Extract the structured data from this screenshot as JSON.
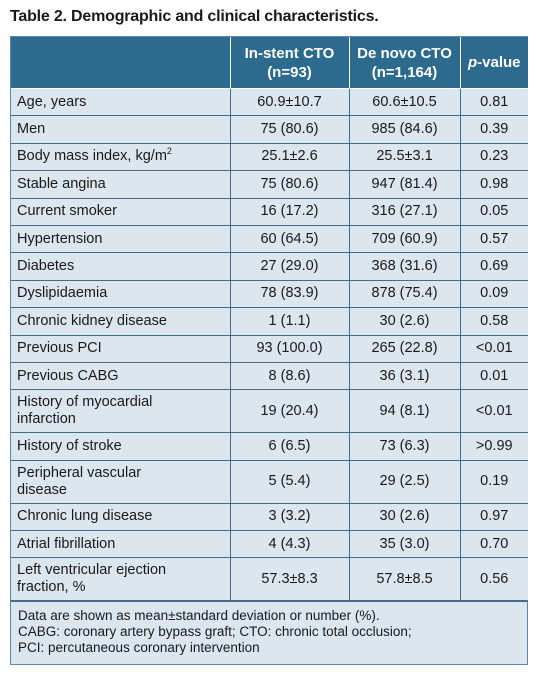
{
  "title": "Table 2. Demographic and clinical characteristics.",
  "header": {
    "col1": "",
    "col2_line1": "In-stent CTO",
    "col2_line2": "(n=93)",
    "col3_line1": "De novo CTO",
    "col3_line2": "(n=1,164)",
    "col4_italic": "p",
    "col4_rest": "-value"
  },
  "rows": [
    {
      "label": "Age, years",
      "a": "60.9±10.7",
      "b": "60.6±10.5",
      "p": "0.81"
    },
    {
      "label": "Men",
      "a": "75 (80.6)",
      "b": "985 (84.6)",
      "p": "0.39"
    },
    {
      "label": "Body mass index, kg/m",
      "label_sup": "2",
      "a": "25.1±2.6",
      "b": "25.5±3.1",
      "p": "0.23"
    },
    {
      "label": "Stable angina",
      "a": "75 (80.6)",
      "b": "947 (81.4)",
      "p": "0.98"
    },
    {
      "label": "Current smoker",
      "a": "16 (17.2)",
      "b": "316 (27.1)",
      "p": "0.05"
    },
    {
      "label": "Hypertension",
      "a": "60 (64.5)",
      "b": "709 (60.9)",
      "p": "0.57"
    },
    {
      "label": "Diabetes",
      "a": "27 (29.0)",
      "b": "368 (31.6)",
      "p": "0.69"
    },
    {
      "label": "Dyslipidaemia",
      "a": "78 (83.9)",
      "b": "878 (75.4)",
      "p": "0.09"
    },
    {
      "label": "Chronic kidney disease",
      "a": "1 (1.1)",
      "b": "30 (2.6)",
      "p": "0.58"
    },
    {
      "label": "Previous PCI",
      "a": "93 (100.0)",
      "b": "265 (22.8)",
      "p": "<0.01"
    },
    {
      "label": "Previous CABG",
      "a": "8 (8.6)",
      "b": "36 (3.1)",
      "p": "0.01"
    },
    {
      "label_line1": "History of myocardial",
      "label_line2": "infarction",
      "a": "19 (20.4)",
      "b": "94 (8.1)",
      "p": "<0.01"
    },
    {
      "label": "History of stroke",
      "a": "6 (6.5)",
      "b": "73 (6.3)",
      "p": ">0.99"
    },
    {
      "label_line1": "Peripheral vascular",
      "label_line2": "disease",
      "a": "5 (5.4)",
      "b": "29 (2.5)",
      "p": "0.19"
    },
    {
      "label": "Chronic lung disease",
      "a": "3 (3.2)",
      "b": "30 (2.6)",
      "p": "0.97"
    },
    {
      "label": "Atrial fibrillation",
      "a": "4 (4.3)",
      "b": "35 (3.0)",
      "p": "0.70"
    },
    {
      "label_line1": "Left ventricular ejection",
      "label_line2": "fraction, %",
      "a": "57.3±8.3",
      "b": "57.8±8.5",
      "p": "0.56"
    }
  ],
  "footnote": {
    "line1": "Data are shown as mean±standard deviation or number (%).",
    "line2": "CABG: coronary artery bypass graft; CTO: chronic total occlusion;",
    "line3": "PCI: percutaneous coronary intervention"
  }
}
